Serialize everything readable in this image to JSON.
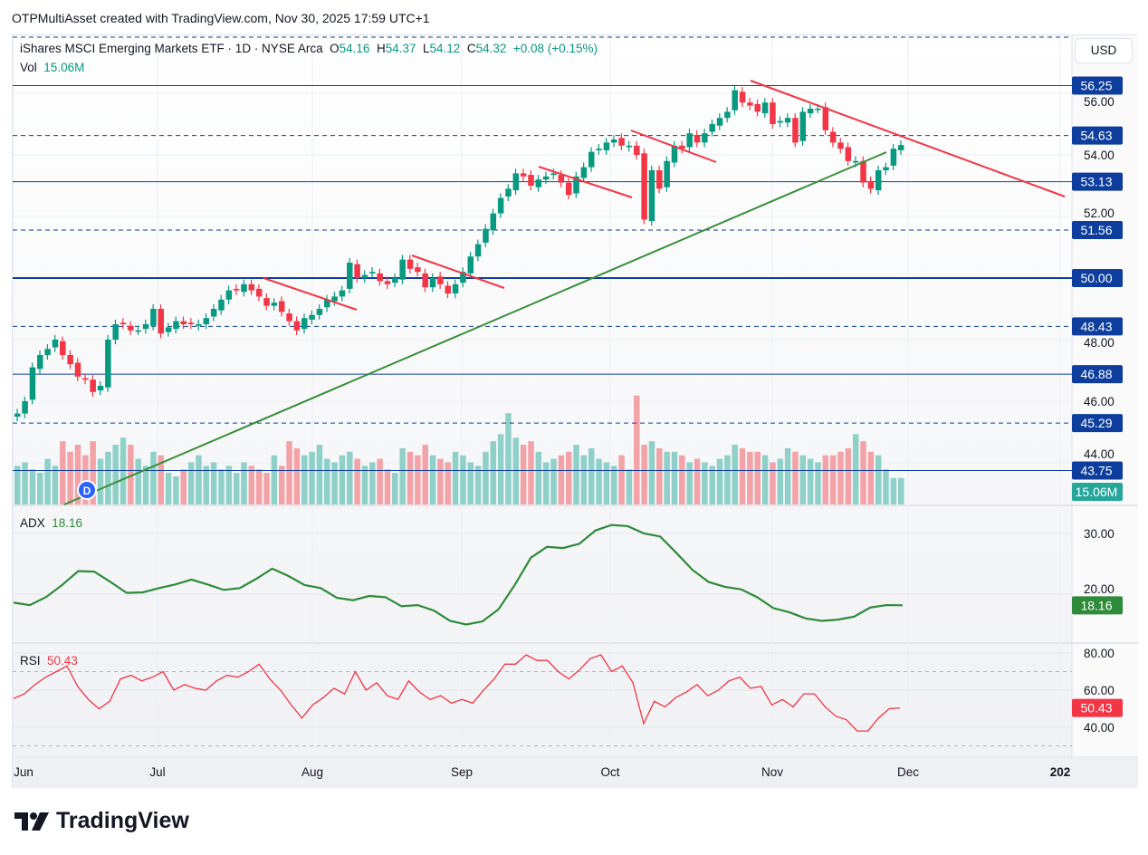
{
  "credit": "OTPMultiAsset created with TradingView.com, Nov 30, 2025 17:59 UTC+1",
  "legend": {
    "symbol": "iShares MSCI Emerging Markets ETF · 1D · NYSE Arca",
    "o_label": "O",
    "o": "54.16",
    "h_label": "H",
    "h": "54.37",
    "l_label": "L",
    "l": "54.12",
    "c_label": "C",
    "c": "54.32",
    "change": "+0.08 (+0.15%)",
    "vol_label": "Vol",
    "vol": "15.06M"
  },
  "currency": "USD",
  "adx": {
    "label": "ADX",
    "value": "18.16"
  },
  "rsi": {
    "label": "RSI",
    "value": "50.43"
  },
  "dividend_marker": "D",
  "logo": "TradingView",
  "colors": {
    "up": "#089981",
    "down": "#f23645",
    "level": "#0d3e9e",
    "adx": "#2e8b3a",
    "rsi": "#f23645",
    "trend_up": "#3a8f3a",
    "trend_down": "#f23645"
  },
  "chart_data": {
    "type": "candlestick",
    "price_ticks": [
      "56.00",
      "54.00",
      "52.00",
      "48.00",
      "46.00",
      "44.00"
    ],
    "price_levels": [
      {
        "label": "56.25",
        "style": "solid"
      },
      {
        "label": "54.63",
        "style": "dashed"
      },
      {
        "label": "53.13",
        "style": "solid"
      },
      {
        "label": "51.56",
        "style": "dashed"
      },
      {
        "label": "50.00",
        "style": "thick"
      },
      {
        "label": "48.43",
        "style": "dashed"
      },
      {
        "label": "46.88",
        "style": "solid"
      },
      {
        "label": "45.29",
        "style": "dashed"
      },
      {
        "label": "43.75",
        "style": "solid"
      }
    ],
    "x_labels": [
      "Jun",
      "Jul",
      "Aug",
      "Sep",
      "Oct",
      "Nov",
      "Dec",
      "202"
    ],
    "close": [
      45.6,
      46,
      47.1,
      47.5,
      47.7,
      48,
      47.5,
      47.2,
      46.8,
      46.7,
      46.3,
      46.5,
      48,
      48.5,
      48.5,
      48.3,
      48.3,
      48.5,
      49,
      48.2,
      48.4,
      48.6,
      48.5,
      48.5,
      48.5,
      48.7,
      49,
      49.3,
      49.6,
      49.6,
      49.8,
      49.6,
      49.4,
      49.1,
      49.2,
      48.9,
      48.6,
      48.3,
      48.7,
      48.8,
      49,
      49.3,
      49.4,
      49.6,
      50.5,
      50,
      50.1,
      50.2,
      49.9,
      49.8,
      50,
      50.6,
      50.3,
      50.2,
      49.7,
      50,
      49.8,
      49.5,
      49.8,
      50.2,
      50.7,
      51.1,
      51.6,
      52.1,
      52.6,
      52.9,
      53.4,
      53.3,
      53,
      53.2,
      53.3,
      53.4,
      53.1,
      52.7,
      53.3,
      53.6,
      54.1,
      54.2,
      54.4,
      54.5,
      54.3,
      54.3,
      54,
      51.9,
      53.5,
      52.9,
      53.8,
      54.3,
      54.2,
      54.7,
      54.4,
      54.7,
      55,
      55.2,
      55.4,
      56.1,
      55.7,
      55.6,
      55.4,
      55.7,
      55,
      55.1,
      55.2,
      54.4,
      55.4,
      55.5,
      55.5,
      54.8,
      54.4,
      54.2,
      53.8,
      53.8,
      53.1,
      52.9,
      53.5,
      53.6,
      54.2,
      54.32
    ],
    "volume_millions": [
      22,
      24,
      20,
      18,
      26,
      22,
      36,
      30,
      34,
      28,
      36,
      26,
      30,
      34,
      38,
      34,
      26,
      22,
      30,
      28,
      18,
      16,
      20,
      24,
      28,
      22,
      24,
      20,
      22,
      18,
      24,
      22,
      20,
      18,
      28,
      22,
      36,
      32,
      28,
      30,
      34,
      26,
      24,
      28,
      30,
      26,
      22,
      24,
      26,
      20,
      18,
      32,
      30,
      28,
      34,
      28,
      26,
      24,
      30,
      28,
      24,
      22,
      30,
      36,
      40,
      52,
      38,
      34,
      36,
      30,
      24,
      26,
      28,
      30,
      34,
      28,
      32,
      26,
      24,
      22,
      28,
      20,
      62,
      34,
      36,
      32,
      30,
      30,
      28,
      24,
      26,
      24,
      22,
      26,
      28,
      34,
      32,
      30,
      30,
      28,
      24,
      26,
      32,
      30,
      28,
      26,
      24,
      28,
      28,
      30,
      32,
      40,
      36,
      30,
      28,
      20,
      15.06,
      15.06
    ],
    "adx": [
      18.6,
      18.2,
      19.5,
      21.5,
      23.8,
      23.7,
      22,
      20.2,
      20.3,
      21,
      21.6,
      22.4,
      21.6,
      20.7,
      21,
      22.5,
      24.2,
      23,
      21.5,
      21,
      19.4,
      19,
      19.7,
      19.5,
      18,
      18.2,
      17.3,
      15.6,
      15,
      15.5,
      17.5,
      21.5,
      26,
      27.8,
      27.6,
      28.3,
      30.5,
      31.4,
      31.2,
      30,
      29.5,
      26.8,
      24,
      22,
      21.2,
      20.8,
      19.5,
      17.7,
      17,
      16,
      15.6,
      15.8,
      16.3,
      17.8,
      18.2,
      18.16
    ],
    "adx_ticks": [
      "30.00",
      "20.00"
    ],
    "rsi": [
      55.5,
      58,
      63,
      67,
      70,
      73,
      62,
      55,
      50,
      54,
      66,
      68,
      65,
      67,
      70,
      60,
      63,
      61,
      60,
      65,
      68,
      67,
      70,
      74,
      66,
      60,
      52,
      45,
      52,
      56,
      61,
      58,
      70,
      60,
      64,
      57,
      55,
      65,
      59,
      55,
      57,
      53,
      55,
      53,
      60,
      66,
      74,
      74,
      79,
      76,
      76,
      70,
      66,
      71,
      77,
      79,
      70,
      73,
      64,
      42,
      54,
      51,
      56,
      59,
      63,
      57,
      60,
      65,
      67,
      61,
      62,
      52,
      55,
      51,
      58,
      58,
      51,
      46,
      44,
      38,
      38,
      45,
      50,
      50.43
    ],
    "rsi_ticks": [
      "80.00",
      "60.00",
      "40.00"
    ],
    "rsi_bands": [
      70,
      30
    ]
  }
}
